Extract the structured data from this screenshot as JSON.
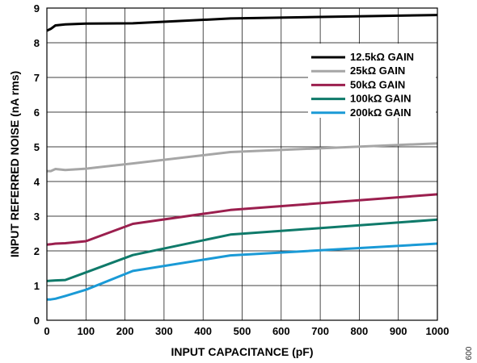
{
  "figure_id": "009",
  "chart_data": {
    "type": "line",
    "title": "",
    "xlabel": "INPUT CAPACITANCE (pF)",
    "ylabel": "INPUT REFERRED NOISE (nA rms)",
    "xlim": [
      0,
      1000
    ],
    "ylim": [
      0,
      9
    ],
    "x_ticks": [
      0,
      100,
      200,
      300,
      400,
      500,
      600,
      700,
      800,
      900,
      1000
    ],
    "y_ticks": [
      0,
      1,
      2,
      3,
      4,
      5,
      6,
      7,
      8,
      9
    ],
    "grid": true,
    "legend_position": "top-right",
    "series": [
      {
        "name": "12.5kΩ GAIN",
        "color": "#000000",
        "x": [
          0,
          10,
          22,
          47,
          100,
          220,
          470,
          1000
        ],
        "y": [
          8.35,
          8.4,
          8.5,
          8.53,
          8.55,
          8.56,
          8.7,
          8.8
        ]
      },
      {
        "name": "25kΩ GAIN",
        "color": "#a6a6a6",
        "x": [
          0,
          10,
          22,
          47,
          100,
          220,
          470,
          1000
        ],
        "y": [
          4.3,
          4.3,
          4.36,
          4.33,
          4.37,
          4.52,
          4.85,
          5.1
        ]
      },
      {
        "name": "50kΩ GAIN",
        "color": "#9b1f4e",
        "x": [
          0,
          10,
          22,
          47,
          100,
          220,
          470,
          1000
        ],
        "y": [
          2.18,
          2.19,
          2.21,
          2.22,
          2.28,
          2.78,
          3.18,
          3.63
        ]
      },
      {
        "name": "100kΩ GAIN",
        "color": "#0f7a6a",
        "x": [
          0,
          10,
          22,
          47,
          100,
          220,
          470,
          1000
        ],
        "y": [
          1.13,
          1.14,
          1.15,
          1.16,
          1.38,
          1.88,
          2.47,
          2.9
        ]
      },
      {
        "name": "200kΩ GAIN",
        "color": "#1a9ad6",
        "x": [
          0,
          10,
          22,
          47,
          100,
          220,
          470,
          1000
        ],
        "y": [
          0.6,
          0.6,
          0.62,
          0.7,
          0.88,
          1.42,
          1.87,
          2.21
        ]
      }
    ]
  }
}
